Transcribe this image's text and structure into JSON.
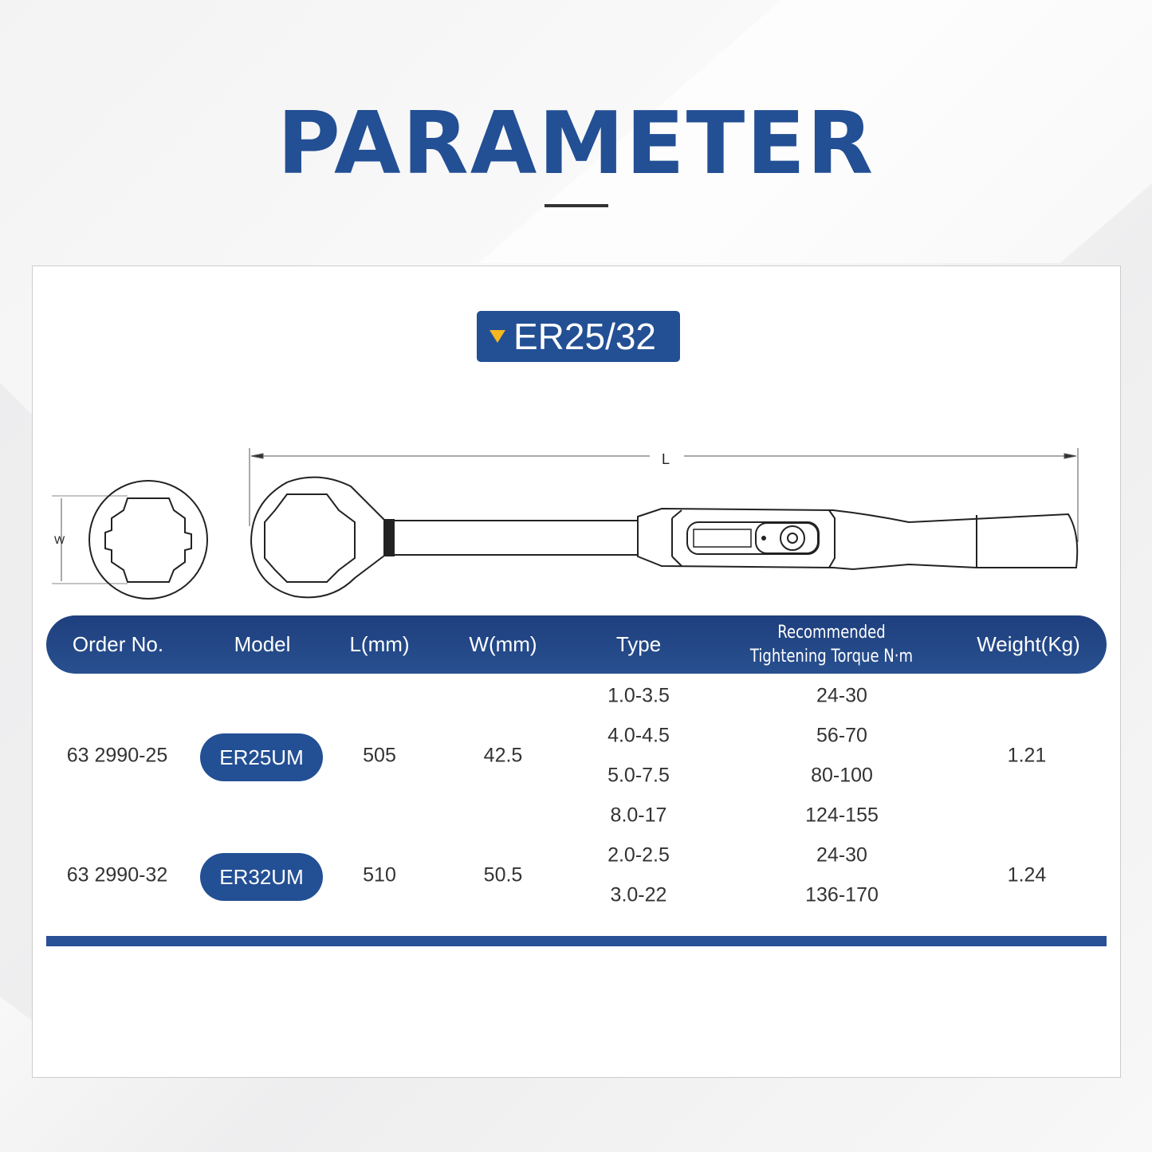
{
  "title": "PARAMETER",
  "badge": {
    "label": "ER25/32",
    "icon": "triangle-down-icon",
    "icon_color": "#f5b820"
  },
  "drawing": {
    "length_label": "L",
    "width_label": "W"
  },
  "colors": {
    "primary": "#234f94",
    "accent": "#f5b820"
  },
  "table": {
    "headers": [
      "Order No.",
      "Model",
      "L(mm)",
      "W(mm)",
      "Type",
      "Recommended",
      "Tightening Torque  N·m",
      "Weight(Kg)"
    ],
    "rows": [
      {
        "order_no": "63 2990-25",
        "model": "ER25UM",
        "l": "505",
        "w": "42.5",
        "weight": "1.21",
        "types": [
          {
            "type": "1.0-3.5",
            "torque": "24-30"
          },
          {
            "type": "4.0-4.5",
            "torque": "56-70"
          },
          {
            "type": "5.0-7.5",
            "torque": "80-100"
          },
          {
            "type": "8.0-17",
            "torque": "124-155"
          }
        ]
      },
      {
        "order_no": "63 2990-32",
        "model": "ER32UM",
        "l": "510",
        "w": "50.5",
        "weight": "1.24",
        "types": [
          {
            "type": "2.0-2.5",
            "torque": "24-30"
          },
          {
            "type": "3.0-22",
            "torque": "136-170"
          }
        ]
      }
    ]
  }
}
